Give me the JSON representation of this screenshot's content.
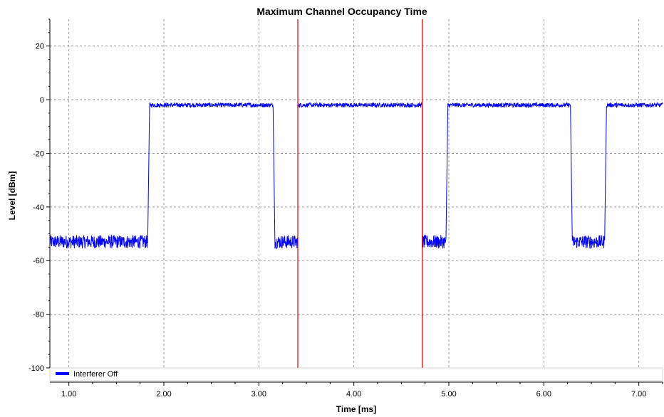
{
  "chart_data": {
    "type": "line",
    "title": "Maximum Channel Occupancy Time",
    "xlabel": "Time [ms]",
    "ylabel": "Level [dBm]",
    "xlim": [
      0.8,
      7.25
    ],
    "ylim": [
      -100,
      30
    ],
    "x_ticks": [
      1.0,
      2.0,
      3.0,
      4.0,
      5.0,
      6.0,
      7.0
    ],
    "x_tick_labels": [
      "1.00",
      "2.00",
      "3.00",
      "4.00",
      "5.00",
      "6.00",
      "7.00"
    ],
    "y_ticks": [
      -100,
      -80,
      -60,
      -40,
      -20,
      0,
      20
    ],
    "y_tick_labels": [
      "-100",
      "-80",
      "-60",
      "-40",
      "-20",
      "0",
      "20"
    ],
    "grid": true,
    "legend_position": "bottom-left",
    "series": [
      {
        "name": "Interferer Off",
        "color": "#0000ff",
        "segments": [
          {
            "x_start": 0.8,
            "x_end": 1.83,
            "level": -53,
            "noise": 2.5
          },
          {
            "x_start": 1.85,
            "x_end": 3.15,
            "level": -2,
            "noise": 0.8
          },
          {
            "x_start": 3.17,
            "x_end": 3.41,
            "level": -53,
            "noise": 2.5
          },
          {
            "x_start": 3.41,
            "x_end": 4.72,
            "level": -2,
            "noise": 0.8
          },
          {
            "x_start": 4.72,
            "x_end": 4.97,
            "level": -53,
            "noise": 2.5
          },
          {
            "x_start": 4.99,
            "x_end": 6.28,
            "level": -2,
            "noise": 0.8
          },
          {
            "x_start": 6.3,
            "x_end": 6.64,
            "level": -53,
            "noise": 2.5
          },
          {
            "x_start": 6.66,
            "x_end": 7.25,
            "level": -2,
            "noise": 0.8
          }
        ]
      }
    ],
    "markers": [
      {
        "x": 3.41,
        "color": "#e00000"
      },
      {
        "x": 4.72,
        "color": "#e00000"
      }
    ]
  }
}
